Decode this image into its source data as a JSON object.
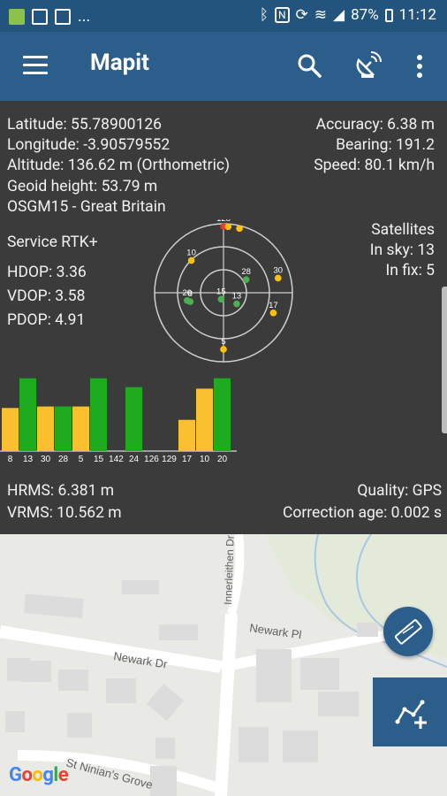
{
  "status_bar": {
    "battery": "87%",
    "time": "11:12",
    "notification_more": "..."
  },
  "app_bar": {
    "title": "Mapit"
  },
  "gps": {
    "latitude": "Latitude: 55.78900126",
    "longitude": "Longitude: -3.90579552",
    "altitude": "Altitude: 136.62 m (Orthometric)",
    "geoid": "Geoid height: 53.79 m",
    "model": "OSGM15 - Great Britain",
    "accuracy": "Accuracy: 6.38 m",
    "bearing": "Bearing: 191.2",
    "speed": "Speed: 80.1 km/h",
    "service": "Service RTK+",
    "hdop": "HDOP: 3.36",
    "vdop": "VDOP: 3.58",
    "pdop": "PDOP: 4.91",
    "satellites_label": "Satellites",
    "in_sky": "In sky: 13",
    "in_fix": "In fix: 5",
    "hrms": "HRMS: 6.381 m",
    "vrms": "VRMS: 10.562 m",
    "quality": "Quality: GPS",
    "correction_age": "Correction age: 0.002 s"
  },
  "skyplot": [
    {
      "id": "10",
      "az": 315,
      "elev_frac": 0.66,
      "color": "#ffc107"
    },
    {
      "id": "128",
      "az": 0,
      "elev_frac": 0.96,
      "color": "#e53935"
    },
    {
      "id": "",
      "az": 4,
      "elev_frac": 0.96,
      "color": "#ffc107"
    },
    {
      "id": "",
      "az": 14,
      "elev_frac": 0.96,
      "color": "#ffc107"
    },
    {
      "id": "28",
      "az": 60,
      "elev_frac": 0.38,
      "color": "#4caf50"
    },
    {
      "id": "30",
      "az": 75,
      "elev_frac": 0.82,
      "color": "#ffc107"
    },
    {
      "id": "15",
      "az": 200,
      "elev_frac": 0.1,
      "color": "#4caf50"
    },
    {
      "id": "13",
      "az": 130,
      "elev_frac": 0.25,
      "color": "#4caf50"
    },
    {
      "id": "20",
      "az": 258,
      "elev_frac": 0.54,
      "color": "#4caf50"
    },
    {
      "id": "8",
      "az": 255,
      "elev_frac": 0.5,
      "color": "#4caf50"
    },
    {
      "id": "17",
      "az": 112,
      "elev_frac": 0.78,
      "color": "#ffc107"
    },
    {
      "id": "5",
      "az": 180,
      "elev_frac": 0.82,
      "color": "#ffc107"
    }
  ],
  "signal_bars": [
    {
      "prn": "8",
      "level": 0.58,
      "color": "#fbc02d"
    },
    {
      "prn": "13",
      "level": 0.98,
      "color": "#1fab1f"
    },
    {
      "prn": "30",
      "level": 0.6,
      "color": "#fbc02d"
    },
    {
      "prn": "28",
      "level": 0.6,
      "color": "#1fab1f"
    },
    {
      "prn": "5",
      "level": 0.6,
      "color": "#fbc02d"
    },
    {
      "prn": "15",
      "level": 0.98,
      "color": "#1fab1f"
    },
    {
      "prn": "142",
      "level": 0,
      "color": "#fbc02d"
    },
    {
      "prn": "24",
      "level": 0.86,
      "color": "#1fab1f"
    },
    {
      "prn": "126",
      "level": 0,
      "color": "#fbc02d"
    },
    {
      "prn": "129",
      "level": 0,
      "color": "#fbc02d"
    },
    {
      "prn": "17",
      "level": 0.42,
      "color": "#fbc02d"
    },
    {
      "prn": "10",
      "level": 0.84,
      "color": "#fbc02d"
    },
    {
      "prn": "20",
      "level": 0.98,
      "color": "#1fab1f"
    }
  ],
  "map": {
    "streets": [
      "Newark Dr",
      "Newark Pl",
      "St Ninian's Grove",
      "Innerleithen Dr"
    ],
    "attribution": "Google"
  },
  "colors": {
    "appbar": "#2b5e8a",
    "statusbar": "#23547d",
    "panel": "#3b3b3b",
    "in_fix": "#1fab1f",
    "in_sky": "#fbc02d"
  }
}
